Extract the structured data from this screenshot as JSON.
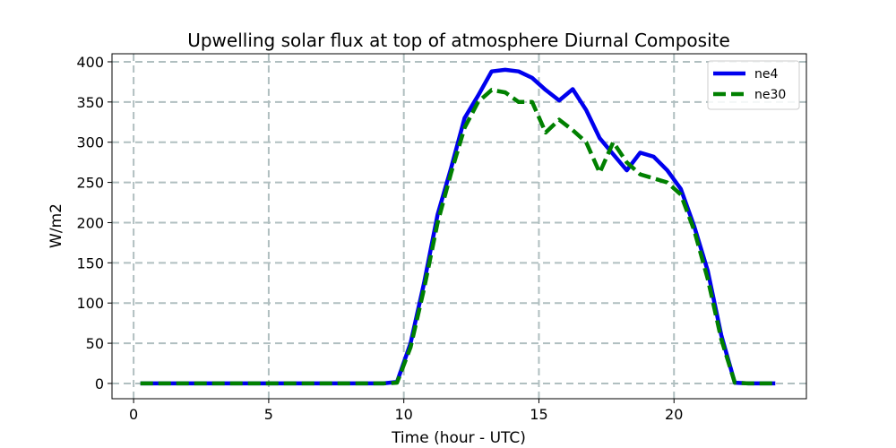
{
  "chart_data": {
    "type": "line",
    "title": "Upwelling solar flux at top of atmosphere Diurnal Composite",
    "xlabel": "Time (hour - UTC)",
    "ylabel": "W/m2",
    "xlim": [
      -0.8,
      24.9
    ],
    "ylim": [
      -19,
      410
    ],
    "xticks": [
      0,
      5,
      10,
      15,
      20
    ],
    "yticks": [
      0,
      50,
      100,
      150,
      200,
      250,
      300,
      350,
      400
    ],
    "grid": true,
    "legend_position": "top-right",
    "x": [
      0.25,
      0.75,
      1.25,
      1.75,
      2.25,
      2.75,
      3.25,
      3.75,
      4.25,
      4.75,
      5.25,
      5.75,
      6.25,
      6.75,
      7.25,
      7.75,
      8.25,
      8.75,
      9.25,
      9.75,
      10.25,
      10.75,
      11.25,
      11.75,
      12.25,
      12.75,
      13.25,
      13.75,
      14.25,
      14.75,
      15.25,
      15.75,
      16.25,
      16.75,
      17.25,
      17.75,
      18.25,
      18.75,
      19.25,
      19.75,
      20.25,
      20.75,
      21.25,
      21.75,
      22.25,
      22.75,
      23.25,
      23.75
    ],
    "series": [
      {
        "name": "ne4",
        "color": "#0000ee",
        "style": "solid",
        "values": [
          0,
          0,
          0,
          0,
          0,
          0,
          0,
          0,
          0,
          0,
          0,
          0,
          0,
          0,
          0,
          0,
          0,
          0,
          0,
          2,
          50,
          125,
          210,
          268,
          330,
          358,
          388,
          390,
          388,
          380,
          365,
          352,
          366,
          340,
          305,
          285,
          265,
          287,
          282,
          265,
          242,
          195,
          140,
          60,
          1,
          0,
          0,
          0
        ]
      },
      {
        "name": "ne30",
        "color": "#008000",
        "style": "dashed",
        "values": [
          0,
          0,
          0,
          0,
          0,
          0,
          0,
          0,
          0,
          0,
          0,
          0,
          0,
          0,
          0,
          0,
          0,
          0,
          0,
          1,
          45,
          118,
          200,
          262,
          318,
          350,
          365,
          362,
          350,
          350,
          312,
          328,
          315,
          300,
          262,
          300,
          275,
          260,
          255,
          250,
          235,
          190,
          130,
          55,
          1,
          0,
          0,
          0
        ]
      }
    ]
  }
}
